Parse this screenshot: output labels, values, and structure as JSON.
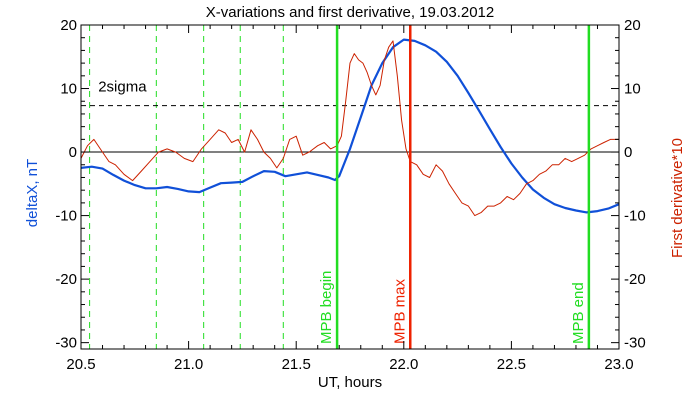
{
  "chart_data": {
    "type": "line",
    "title": "X-variations and first derivative, 19.03.2012",
    "xlabel": "UT, hours",
    "ylabel_left": "deltaX, nT",
    "ylabel_right": "First derivative*10",
    "xlim": [
      20.5,
      23.0
    ],
    "ylim": [
      -31,
      20
    ],
    "x_ticks": [
      20.5,
      21.0,
      21.5,
      22.0,
      22.5,
      23.0
    ],
    "x_tick_labels": [
      "20.5",
      "21.0",
      "21.5",
      "22.0",
      "22.5",
      "23.0"
    ],
    "y_ticks": [
      20,
      10,
      0,
      -10,
      -20,
      -30
    ],
    "y_tick_labels": [
      "20",
      "10",
      "0",
      "-10",
      "-20",
      "-30"
    ],
    "grid": false,
    "colors": {
      "deltaX": "#1050d8",
      "derivative": "#cc2200",
      "mpb_edge": "#22dd22",
      "mpb_max": "#ee2200",
      "dashed_green": "#22dd22",
      "axis": "#000000"
    },
    "series": [
      {
        "key": "deltaX",
        "x": [
          20.5,
          20.55,
          20.6,
          20.65,
          20.7,
          20.75,
          20.8,
          20.85,
          20.9,
          20.95,
          21.0,
          21.05,
          21.1,
          21.15,
          21.2,
          21.25,
          21.3,
          21.35,
          21.4,
          21.45,
          21.5,
          21.55,
          21.6,
          21.65,
          21.68,
          21.7,
          21.75,
          21.8,
          21.85,
          21.9,
          21.95,
          22.0,
          22.05,
          22.1,
          22.15,
          22.2,
          22.25,
          22.3,
          22.35,
          22.4,
          22.45,
          22.5,
          22.55,
          22.6,
          22.65,
          22.7,
          22.75,
          22.8,
          22.85,
          22.9,
          22.95,
          23.0
        ],
        "values": [
          -2.5,
          -2.3,
          -2.6,
          -3.6,
          -4.5,
          -5.2,
          -5.7,
          -5.7,
          -5.5,
          -5.8,
          -6.2,
          -6.3,
          -5.6,
          -4.9,
          -4.8,
          -4.7,
          -3.8,
          -3.0,
          -3.1,
          -3.8,
          -3.5,
          -3.2,
          -3.6,
          -4.0,
          -4.4,
          -3.8,
          0.5,
          5.5,
          10.5,
          14.0,
          16.5,
          17.7,
          17.5,
          16.8,
          15.8,
          14.2,
          12.0,
          9.3,
          6.5,
          3.6,
          0.8,
          -1.8,
          -4.0,
          -5.9,
          -7.2,
          -8.2,
          -8.8,
          -9.2,
          -9.5,
          -9.3,
          -8.9,
          -8.2
        ]
      },
      {
        "key": "derivative",
        "x": [
          20.5,
          20.53,
          20.56,
          20.6,
          20.63,
          20.66,
          20.7,
          20.74,
          20.78,
          20.82,
          20.86,
          20.9,
          20.94,
          20.98,
          21.02,
          21.06,
          21.1,
          21.14,
          21.17,
          21.2,
          21.23,
          21.26,
          21.29,
          21.32,
          21.35,
          21.38,
          21.41,
          21.44,
          21.47,
          21.5,
          21.53,
          21.56,
          21.6,
          21.63,
          21.66,
          21.69,
          21.71,
          21.73,
          21.75,
          21.77,
          21.79,
          21.81,
          21.83,
          21.85,
          21.87,
          21.89,
          21.91,
          21.93,
          21.95,
          21.97,
          21.99,
          22.01,
          22.03,
          22.06,
          22.09,
          22.12,
          22.15,
          22.18,
          22.21,
          22.24,
          22.27,
          22.3,
          22.33,
          22.36,
          22.39,
          22.42,
          22.45,
          22.48,
          22.51,
          22.54,
          22.57,
          22.6,
          22.63,
          22.66,
          22.69,
          22.72,
          22.75,
          22.78,
          22.81,
          22.84,
          22.87,
          22.9,
          22.93,
          22.96,
          23.0
        ],
        "values": [
          -1.0,
          1.0,
          2.0,
          0.0,
          -1.5,
          -2.0,
          -3.5,
          -4.5,
          -3.0,
          -1.5,
          0.0,
          0.5,
          0.0,
          -1.0,
          -1.5,
          0.5,
          2.0,
          3.5,
          3.0,
          1.5,
          2.0,
          0.0,
          3.5,
          2.0,
          0.0,
          -1.0,
          -2.5,
          -1.0,
          2.0,
          2.5,
          -0.5,
          0.0,
          1.0,
          1.5,
          0.5,
          1.0,
          2.5,
          8.0,
          14.0,
          15.5,
          14.5,
          14.0,
          12.5,
          10.5,
          9.0,
          10.5,
          14.5,
          16.5,
          17.5,
          12.0,
          5.0,
          0.5,
          -1.5,
          -2.0,
          -3.5,
          -4.0,
          -2.0,
          -3.0,
          -5.0,
          -6.5,
          -8.0,
          -8.5,
          -10.0,
          -9.5,
          -8.5,
          -8.5,
          -8.0,
          -7.0,
          -7.5,
          -6.5,
          -5.0,
          -4.5,
          -3.5,
          -3.0,
          -2.0,
          -2.0,
          -1.0,
          -1.5,
          -1.0,
          -0.5,
          0.5,
          1.0,
          1.5,
          2.0,
          2.0
        ]
      }
    ],
    "reference_lines": {
      "zero_y": 0,
      "two_sigma_y": 7.3
    },
    "dashed_vertical_x": [
      20.54,
      20.85,
      21.07,
      21.24,
      21.44
    ],
    "annotations": {
      "two_sigma": {
        "text": "2sigma",
        "x": 20.58,
        "y": 9.5
      },
      "mpb_begin": {
        "text": "MPB begin",
        "x": 21.69
      },
      "mpb_max": {
        "text": "MPB max",
        "x": 22.03
      },
      "mpb_end": {
        "text": "MPB end",
        "x": 22.86
      }
    }
  }
}
